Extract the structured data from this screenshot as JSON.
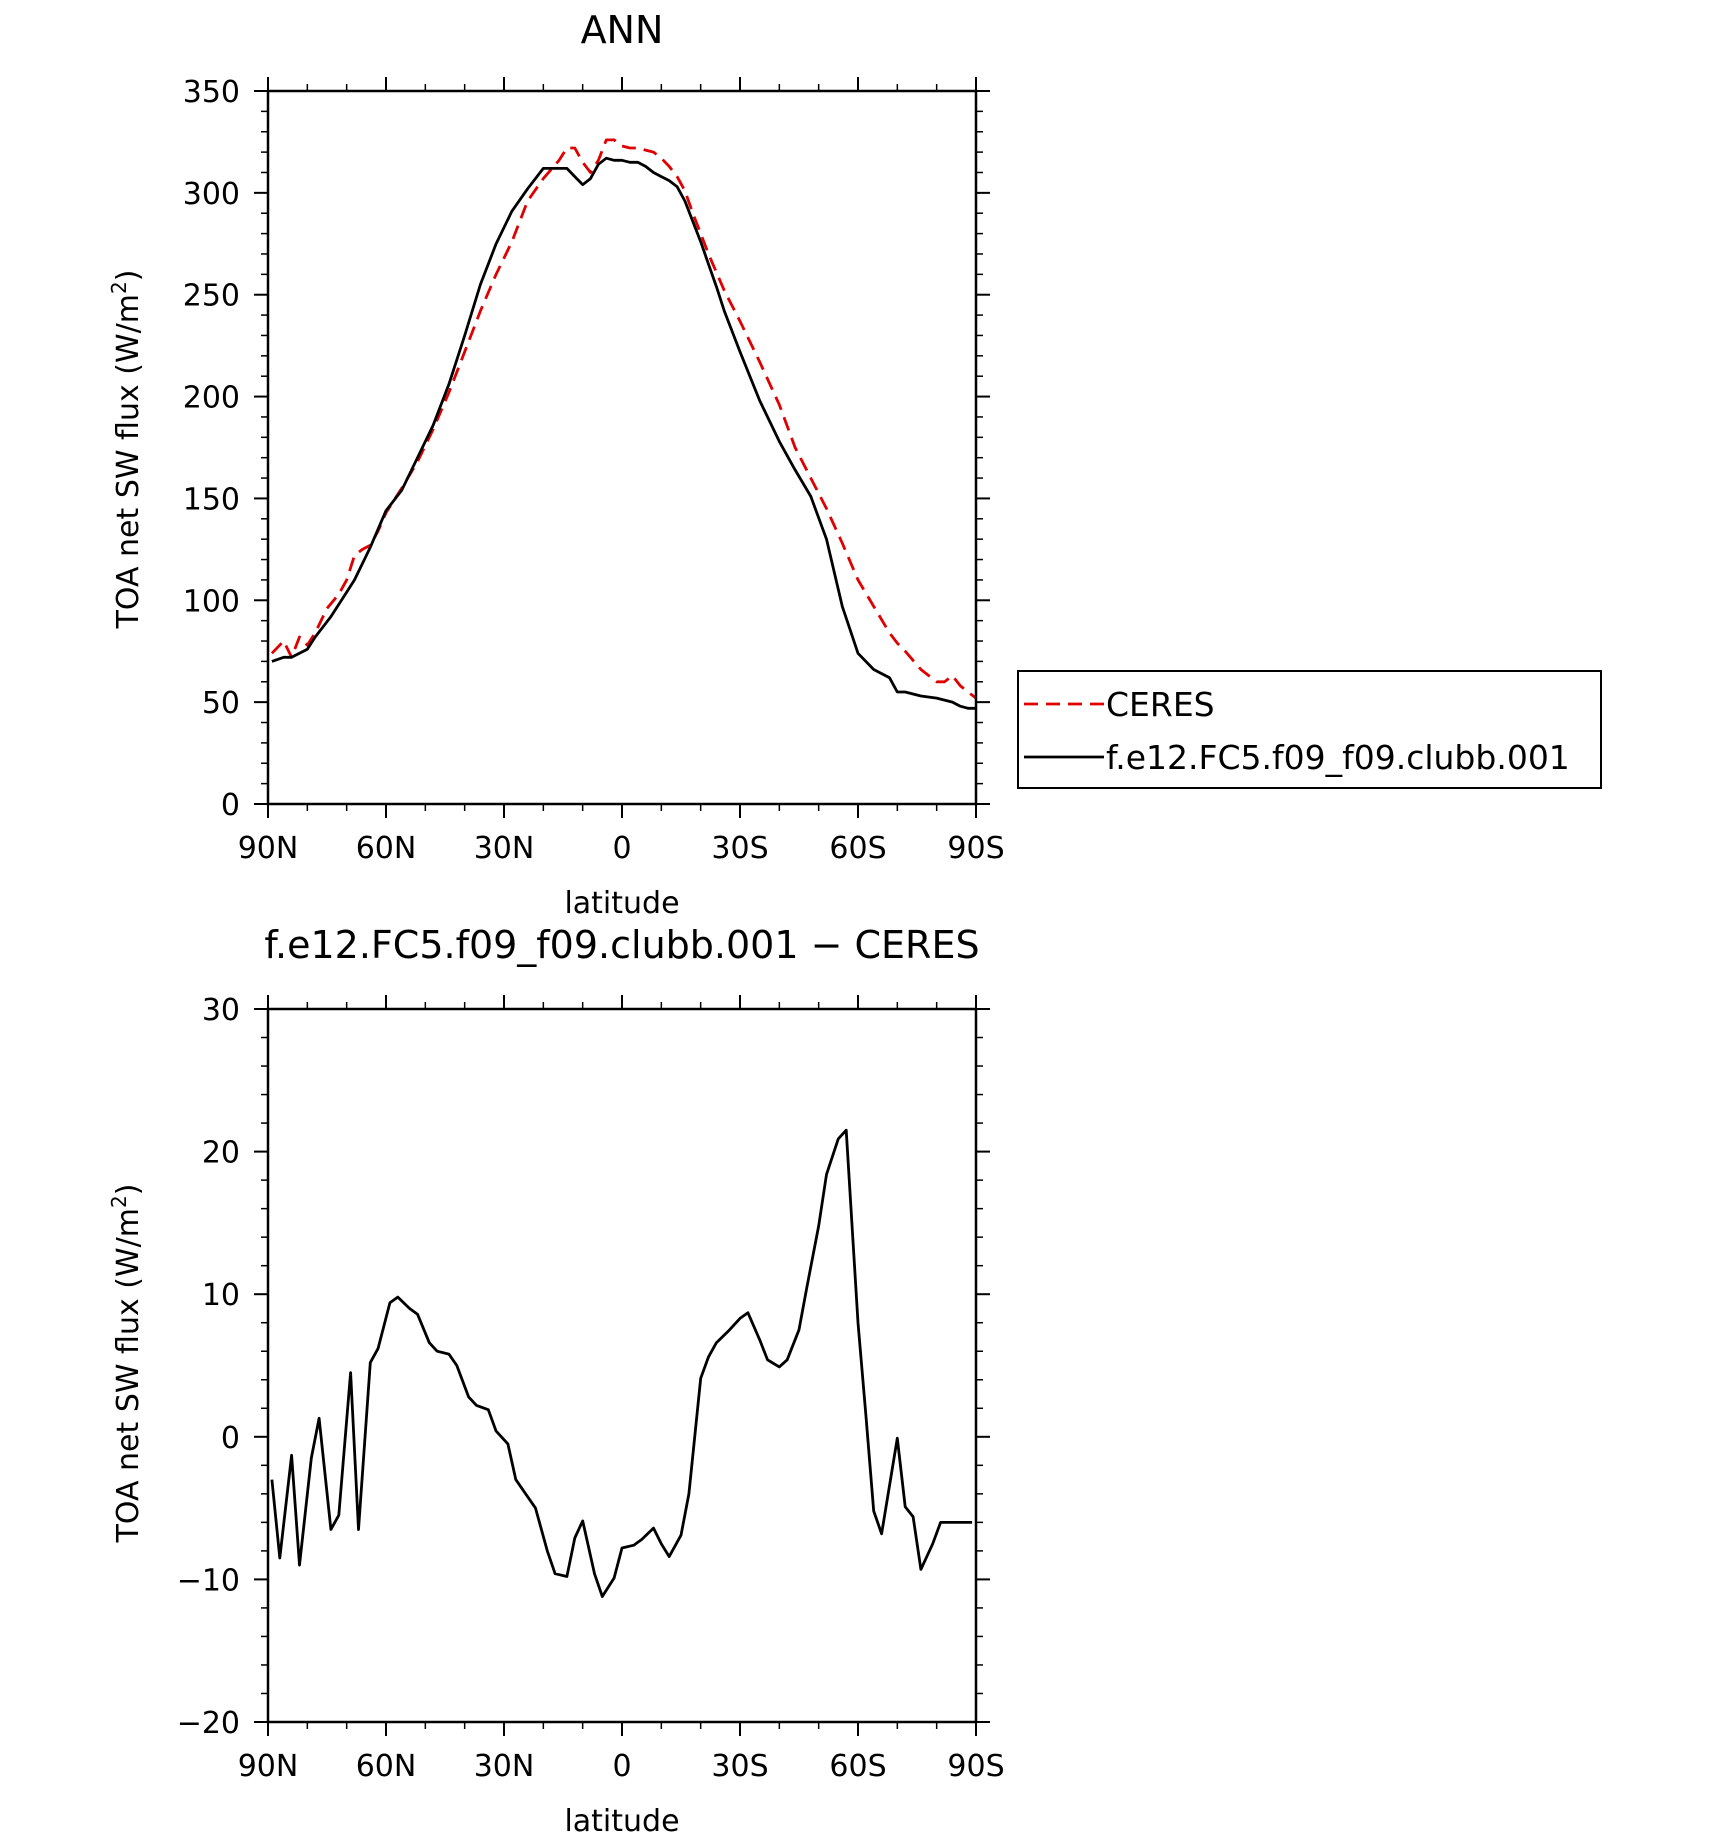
{
  "chart_data": [
    {
      "type": "line",
      "title": "ANN",
      "xlabel": "latitude",
      "ylabel": "TOA net SW flux (W/m²)",
      "ylabel_parts": {
        "main": "TOA net SW flux (W/m",
        "sup": "2",
        "end": ")"
      },
      "xlim": [
        90,
        -90
      ],
      "ylim": [
        0,
        350
      ],
      "xticks": [
        90,
        60,
        30,
        0,
        -30,
        -60,
        -90
      ],
      "xtick_labels": [
        "90N",
        "60N",
        "30N",
        "0",
        "30S",
        "60S",
        "90S"
      ],
      "yticks": [
        0,
        50,
        100,
        150,
        200,
        250,
        300,
        350
      ],
      "ytick_labels": [
        "0",
        "50",
        "100",
        "150",
        "200",
        "250",
        "300",
        "350"
      ],
      "legend_placement": "right, outside plot",
      "series": [
        {
          "name": "CERES",
          "color": "#e00000",
          "style": "dashed",
          "x": [
            89,
            86,
            84,
            82,
            80,
            78,
            75,
            72,
            70,
            68,
            66,
            64,
            62,
            60,
            56,
            52,
            48,
            44,
            40,
            36,
            32,
            28,
            24,
            20,
            16,
            14,
            12,
            10,
            8,
            6,
            4,
            2,
            0,
            -2,
            -4,
            -6,
            -8,
            -10,
            -12,
            -14,
            -16,
            -18,
            -20,
            -22,
            -24,
            -26,
            -30,
            -35,
            -40,
            -44,
            -48,
            -52,
            -56,
            -60,
            -64,
            -68,
            -70,
            -72,
            -76,
            -80,
            -82,
            -84,
            -86,
            -88,
            -90
          ],
          "y": [
            74,
            80,
            72,
            82,
            78,
            84,
            96,
            103,
            110,
            122,
            125,
            127,
            134,
            143,
            155,
            168,
            184,
            202,
            222,
            242,
            260,
            276,
            296,
            307,
            316,
            322,
            322,
            315,
            310,
            316,
            326,
            326,
            323,
            322,
            322,
            321,
            320,
            317,
            313,
            308,
            301,
            290,
            280,
            270,
            261,
            252,
            237,
            217,
            196,
            175,
            160,
            145,
            128,
            110,
            97,
            84,
            79,
            75,
            66,
            60,
            60,
            63,
            58,
            55,
            52
          ]
        },
        {
          "name": "f.e12.FC5.f09_f09.clubb.001",
          "color": "#000000",
          "style": "solid",
          "x": [
            89,
            86,
            84,
            82,
            80,
            78,
            76,
            74,
            72,
            70,
            68,
            66,
            64,
            62,
            60,
            56,
            52,
            48,
            44,
            40,
            36,
            32,
            28,
            24,
            20,
            16,
            14,
            12,
            10,
            8,
            6,
            4,
            2,
            0,
            -2,
            -4,
            -6,
            -8,
            -10,
            -12,
            -14,
            -16,
            -18,
            -20,
            -22,
            -24,
            -26,
            -30,
            -35,
            -40,
            -44,
            -48,
            -52,
            -56,
            -60,
            -64,
            -68,
            -70,
            -72,
            -76,
            -80,
            -84,
            -86,
            -88,
            -90
          ],
          "y": [
            70,
            72,
            72,
            74,
            76,
            82,
            87,
            92,
            98,
            104,
            110,
            118,
            126,
            135,
            144,
            154,
            170,
            186,
            206,
            230,
            255,
            275,
            291,
            302,
            312,
            312,
            312,
            308,
            304,
            307,
            314,
            317,
            316,
            316,
            315,
            315,
            313,
            310,
            308,
            306,
            303,
            296,
            286,
            276,
            265,
            254,
            242,
            222,
            198,
            178,
            164,
            151,
            130,
            97,
            74,
            66,
            62,
            55,
            55,
            53,
            52,
            50,
            48,
            47,
            47
          ]
        }
      ]
    },
    {
      "type": "line",
      "title": "f.e12.FC5.f09_f09.clubb.001 − CERES",
      "xlabel": "latitude",
      "ylabel": "TOA net SW flux (W/m²)",
      "ylabel_parts": {
        "main": "TOA net SW flux (W/m",
        "sup": "2",
        "end": ")"
      },
      "xlim": [
        90,
        -90
      ],
      "ylim": [
        -20,
        30
      ],
      "xticks": [
        90,
        60,
        30,
        0,
        -30,
        -60,
        -90
      ],
      "xtick_labels": [
        "90N",
        "60N",
        "30N",
        "0",
        "30S",
        "60S",
        "90S"
      ],
      "yticks": [
        -20,
        -10,
        0,
        10,
        20,
        30
      ],
      "ytick_labels": [
        "−20",
        "−10",
        "0",
        "10",
        "20",
        "30"
      ],
      "series": [
        {
          "name": "",
          "color": "#000000",
          "style": "solid",
          "x": [
            89,
            87,
            84,
            82,
            79,
            77,
            74,
            72,
            69,
            67,
            64,
            62,
            59,
            57,
            54,
            52,
            49,
            47,
            44,
            42,
            39,
            37,
            34,
            32,
            29,
            27,
            24,
            22,
            19,
            17,
            14,
            12,
            10,
            7,
            5,
            2,
            0,
            -3,
            -5,
            -8,
            -10,
            -12,
            -15,
            -17,
            -20,
            -22,
            -24,
            -27,
            -30,
            -32,
            -35,
            -37,
            -40,
            -42,
            -45,
            -47,
            -50,
            -52,
            -55,
            -57,
            -60,
            -62,
            -64,
            -66,
            -70,
            -72,
            -74,
            -76,
            -79,
            -81,
            -84,
            -86,
            -89
          ],
          "y": [
            -3,
            -8.5,
            -1.3,
            -9,
            -1.5,
            1.3,
            -6.5,
            -5.5,
            4.5,
            -6.5,
            5.2,
            6.2,
            9.4,
            9.8,
            9.0,
            8.6,
            6.6,
            6.0,
            5.8,
            5.0,
            2.8,
            2.2,
            1.9,
            0.4,
            -0.5,
            -3.0,
            -4.2,
            -5.0,
            -8.0,
            -9.6,
            -9.8,
            -7.1,
            -5.9,
            -9.6,
            -11.2,
            -9.9,
            -7.8,
            -7.6,
            -7.2,
            -6.4,
            -7.5,
            -8.4,
            -6.9,
            -4.0,
            4.1,
            5.6,
            6.6,
            7.4,
            8.3,
            8.7,
            6.8,
            5.4,
            4.9,
            5.4,
            7.5,
            10.5,
            14.8,
            18.4,
            20.9,
            21.5,
            8.0,
            1.5,
            -5.2,
            -6.8,
            -0.1,
            -4.9,
            -5.6,
            -9.3,
            -7.5,
            -6.0,
            -6.0,
            -6.0,
            -6.0
          ]
        }
      ]
    }
  ]
}
